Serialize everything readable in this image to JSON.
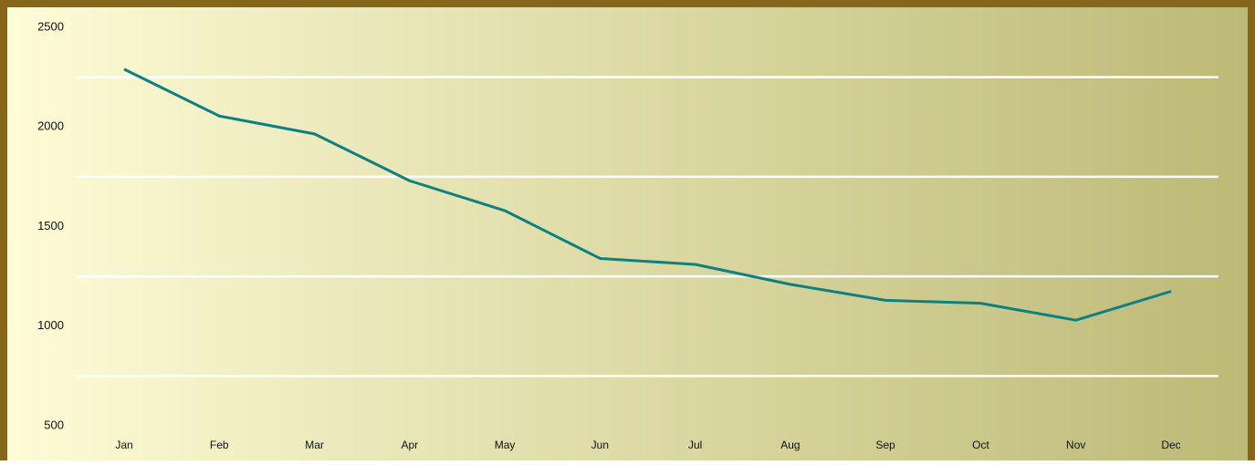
{
  "chart_data": {
    "type": "line",
    "categories": [
      "Jan",
      "Feb",
      "Mar",
      "Apr",
      "May",
      "Jun",
      "Jul",
      "Aug",
      "Sep",
      "Oct",
      "Nov",
      "Dec"
    ],
    "values": [
      2290,
      2055,
      1965,
      1730,
      1580,
      1340,
      1310,
      1210,
      1130,
      1115,
      1030,
      1175
    ],
    "color": "#0e8080",
    "ylim": [
      500,
      2500
    ],
    "yticks": [
      500,
      1000,
      1500,
      2000,
      2500
    ],
    "gridlines": [
      750,
      1250,
      1750,
      2250
    ],
    "grid_color": "#ffffff"
  }
}
